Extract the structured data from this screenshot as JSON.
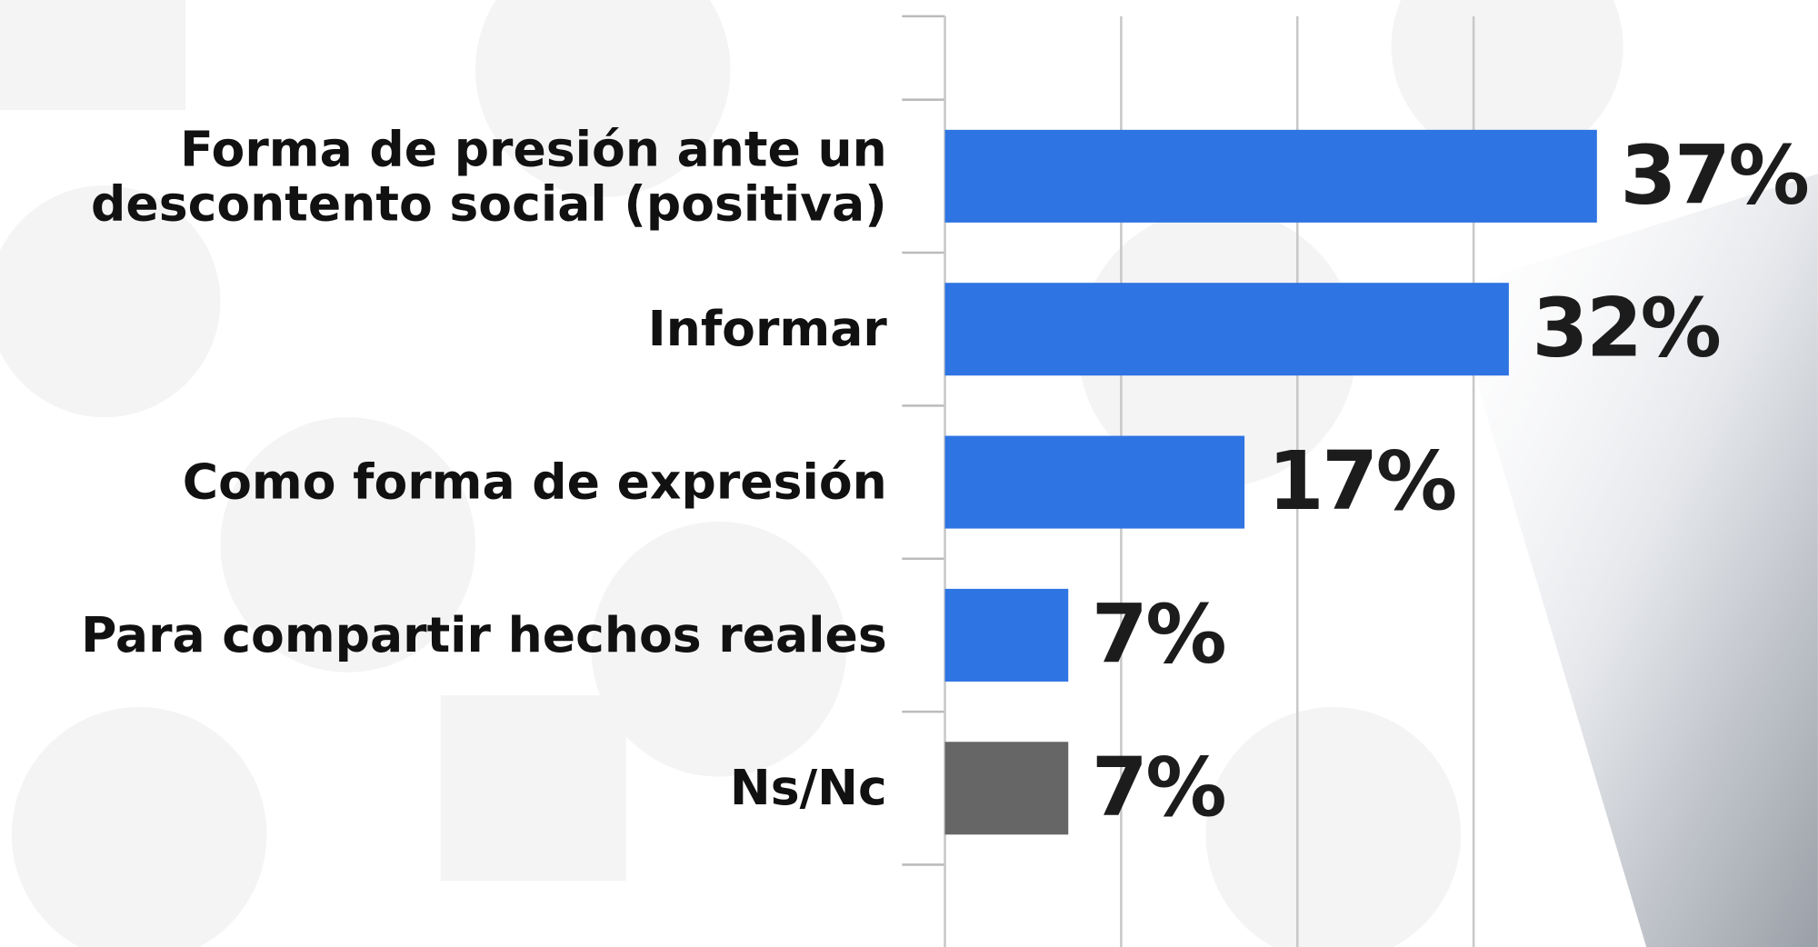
{
  "chart_data": {
    "type": "hbar",
    "categories": [
      "Forma de presión ante un descontento social (positiva)",
      "Informar",
      "Como forma de expresión",
      "Para compartir hechos reales",
      "Ns/Nc"
    ],
    "values": [
      37,
      32,
      17,
      7,
      7
    ],
    "value_labels": [
      "37%",
      "32%",
      "17%",
      "7%",
      "7%"
    ],
    "colors": [
      "#2e74e2",
      "#2e74e2",
      "#2e74e2",
      "#2e74e2",
      "#666666"
    ],
    "xlim": [
      0,
      50
    ],
    "xticks": [
      0,
      10,
      20,
      30
    ],
    "grid": true
  }
}
